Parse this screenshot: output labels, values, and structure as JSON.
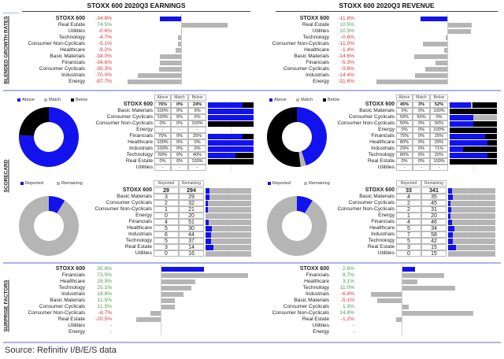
{
  "colors": {
    "blue": "#1212ee",
    "gray": "#b5b5b5",
    "black": "#000000",
    "green": "#4c9a4c",
    "red": "#d43535"
  },
  "section_labels": {
    "growth": "BLENDED GROWTH RATES",
    "scorecard": "SCORECARD",
    "surprise": "SURPRISE FACTORS"
  },
  "source": "Source: Refinitiv I/B/E/S data",
  "chart_data": [
    {
      "type": "bar",
      "title": "STOXX 600 2020Q3 EARNINGS",
      "panel": "Blended Growth Rates (%)",
      "categories": [
        "STOXX 600",
        "Real Estate",
        "Utilities",
        "Technology",
        "Consumer Non-Cyclicals",
        "Healthcare",
        "Basic Materials",
        "Financials",
        "Consumer Cyclicals",
        "Industrials",
        "Energy"
      ],
      "values": [
        -34.8,
        74.5,
        -0.6,
        -4.7,
        -5.1,
        -9.2,
        -34.0,
        -34.6,
        -35.3,
        -70.0,
        -87.7
      ],
      "labels": [
        "-34.8%",
        "74.5%",
        "-0.6%",
        "-4.7%",
        "-5.1%",
        "-9.2%",
        "-34.0%",
        "-34.6%",
        "-35.3%",
        "-70.0%",
        "-87.7%"
      ]
    },
    {
      "type": "bar",
      "title": "STOXX 600 2020Q3 REVENUE",
      "panel": "Blended Growth Rates (%)",
      "categories": [
        "STOXX 600",
        "Real Estate",
        "Utilities",
        "Technology",
        "Consumer Non-Cyclicals",
        "Healthcare",
        "Basic Materials",
        "Financials",
        "Consumer Cyclicals",
        "Industrials",
        "Energy"
      ],
      "values": [
        -11.8,
        10.5,
        10.3,
        -0.6,
        -11.0,
        -1.4,
        -14.6,
        -5.3,
        -9.8,
        -14.4,
        -31.6
      ],
      "labels": [
        "-11.8%",
        "10.5%",
        "10.3%",
        "-0.6%",
        "-11.0%",
        "-1.4%",
        "-14.6%",
        "-5.3%",
        "-9.8%",
        "-14.4%",
        "-31.6%"
      ]
    },
    {
      "type": "table",
      "panel": "Earnings Scorecard",
      "legend": [
        "Above",
        "Match",
        "Below"
      ],
      "headers": [
        "Above",
        "Match",
        "Below"
      ],
      "rows": [
        {
          "label": "STOXX 600",
          "cells": [
            "76%",
            "0%",
            "24%"
          ],
          "values": [
            76,
            0,
            24
          ]
        },
        {
          "label": "Basic Materials",
          "cells": [
            "100%",
            "0%",
            "0%"
          ],
          "values": [
            100,
            0,
            0
          ]
        },
        {
          "label": "Consumer Cyclicals",
          "cells": [
            "100%",
            "0%",
            "0%"
          ],
          "values": [
            100,
            0,
            0
          ]
        },
        {
          "label": "Consumer Non-Cyclicals",
          "cells": [
            "0%",
            "0%",
            "100%"
          ],
          "values": [
            0,
            0,
            100
          ]
        },
        {
          "label": "Energy",
          "cells": [
            "-",
            "-",
            "-"
          ],
          "values": null
        },
        {
          "label": "Financials",
          "cells": [
            "75%",
            "0%",
            "25%"
          ],
          "values": [
            75,
            0,
            25
          ]
        },
        {
          "label": "Healthcare",
          "cells": [
            "100%",
            "0%",
            "0%"
          ],
          "values": [
            100,
            0,
            0
          ]
        },
        {
          "label": "Industrials",
          "cells": [
            "100%",
            "0%",
            "0%"
          ],
          "values": [
            100,
            0,
            0
          ]
        },
        {
          "label": "Technology",
          "cells": [
            "60%",
            "0%",
            "40%"
          ],
          "values": [
            60,
            0,
            40
          ]
        },
        {
          "label": "Real Estate",
          "cells": [
            "0%",
            "0%",
            "100%"
          ],
          "values": [
            0,
            0,
            100
          ]
        },
        {
          "label": "Utilities",
          "cells": [
            "-",
            "-",
            "-"
          ],
          "values": null
        }
      ]
    },
    {
      "type": "table",
      "panel": "Revenue Scorecard",
      "legend": [
        "Above",
        "Match",
        "Below"
      ],
      "headers": [
        "Above",
        "Match",
        "Below"
      ],
      "rows": [
        {
          "label": "STOXX 600",
          "cells": [
            "45%",
            "3%",
            "52%"
          ],
          "values": [
            45,
            3,
            52
          ]
        },
        {
          "label": "Basic Materials",
          "cells": [
            "0%",
            "0%",
            "100%"
          ],
          "values": [
            0,
            0,
            100
          ]
        },
        {
          "label": "Consumer Cyclicals",
          "cells": [
            "50%",
            "50%",
            "0%"
          ],
          "values": [
            50,
            50,
            0
          ]
        },
        {
          "label": "Consumer Non-Cyclicals",
          "cells": [
            "50%",
            "0%",
            "50%"
          ],
          "values": [
            50,
            0,
            50
          ]
        },
        {
          "label": "Energy",
          "cells": [
            "0%",
            "0%",
            "100%"
          ],
          "values": [
            0,
            0,
            100
          ]
        },
        {
          "label": "Financials",
          "cells": [
            "75%",
            "0%",
            "25%"
          ],
          "values": [
            75,
            0,
            25
          ]
        },
        {
          "label": "Healthcare",
          "cells": [
            "80%",
            "0%",
            "20%"
          ],
          "values": [
            80,
            0,
            20
          ]
        },
        {
          "label": "Industrials",
          "cells": [
            "29%",
            "0%",
            "71%"
          ],
          "values": [
            29,
            0,
            71
          ]
        },
        {
          "label": "Technology",
          "cells": [
            "80%",
            "0%",
            "20%"
          ],
          "values": [
            80,
            0,
            20
          ]
        },
        {
          "label": "Real Estate",
          "cells": [
            "0%",
            "0%",
            "100%"
          ],
          "values": [
            0,
            0,
            100
          ]
        },
        {
          "label": "Utilities",
          "cells": [
            "-",
            "-",
            "-"
          ],
          "values": null
        }
      ]
    },
    {
      "type": "table",
      "panel": "Earnings Reported",
      "legend": [
        "Reported",
        "Remaining"
      ],
      "headers": [
        "Reported",
        "Remaining"
      ],
      "rows": [
        {
          "label": "STOXX 600",
          "cells": [
            "29",
            "294"
          ]
        },
        {
          "label": "Basic Materials",
          "cells": [
            "3",
            "29"
          ]
        },
        {
          "label": "Consumer Cyclicals",
          "cells": [
            "2",
            "32"
          ]
        },
        {
          "label": "Consumer Non-Cyclicals",
          "cells": [
            "1",
            "21"
          ]
        },
        {
          "label": "Energy",
          "cells": [
            "0",
            "20"
          ]
        },
        {
          "label": "Financials",
          "cells": [
            "4",
            "51"
          ]
        },
        {
          "label": "Healthcare",
          "cells": [
            "5",
            "30"
          ]
        },
        {
          "label": "Industrials",
          "cells": [
            "6",
            "44"
          ]
        },
        {
          "label": "Technology",
          "cells": [
            "5",
            "37"
          ]
        },
        {
          "label": "Real Estate",
          "cells": [
            "3",
            "14"
          ]
        },
        {
          "label": "Utilities",
          "cells": [
            "0",
            "16"
          ]
        }
      ]
    },
    {
      "type": "table",
      "panel": "Revenue Reported",
      "legend": [
        "Reported",
        "Remaining"
      ],
      "headers": [
        "Reported",
        "Remaining"
      ],
      "rows": [
        {
          "label": "STOXX 600",
          "cells": [
            "33",
            "341"
          ]
        },
        {
          "label": "Basic Materials",
          "cells": [
            "4",
            "35"
          ]
        },
        {
          "label": "Consumer Cyclicals",
          "cells": [
            "2",
            "45"
          ]
        },
        {
          "label": "Consumer Non-Cyclicals",
          "cells": [
            "2",
            "31"
          ]
        },
        {
          "label": "Energy",
          "cells": [
            "1",
            "20"
          ]
        },
        {
          "label": "Financials",
          "cells": [
            "4",
            "46"
          ]
        },
        {
          "label": "Healthcare",
          "cells": [
            "5",
            "34"
          ]
        },
        {
          "label": "Industrials",
          "cells": [
            "7",
            "58"
          ]
        },
        {
          "label": "Technology",
          "cells": [
            "5",
            "42"
          ]
        },
        {
          "label": "Real Estate",
          "cells": [
            "3",
            "15"
          ]
        },
        {
          "label": "Utilities",
          "cells": [
            "0",
            "15"
          ]
        }
      ]
    },
    {
      "type": "bar",
      "panel": "Earnings Surprise Factors (%)",
      "categories": [
        "STOXX 600",
        "Financials",
        "Healthcare",
        "Technology",
        "Industrials",
        "Basic Materials",
        "Consumer Cyclicals",
        "Consumer Non-Cyclicals",
        "Real Estate",
        "Utilities",
        "Energy"
      ],
      "values": [
        35.9,
        73.5,
        28.9,
        25.1,
        18.8,
        11.5,
        11.5,
        -8.7,
        -20.5,
        null,
        null
      ],
      "labels": [
        "35.9%",
        "73.5%",
        "28.9%",
        "25.1%",
        "18.8%",
        "11.5%",
        "11.5%",
        "-8.7%",
        "-20.5%",
        "-",
        "-"
      ]
    },
    {
      "type": "bar",
      "panel": "Revenue Surprise Factors (%)",
      "categories": [
        "STOXX 600",
        "Financials",
        "Healthcare",
        "Technology",
        "Industrials",
        "Basic Materials",
        "Consumer Cyclicals",
        "Consumer Non-Cyclicals",
        "Real Estate",
        "Utilities",
        "Energy"
      ],
      "values": [
        2.6,
        8.7,
        3.1,
        11.0,
        -6.4,
        -5.1,
        1.3,
        14.8,
        -1.2,
        null,
        null
      ],
      "labels": [
        "2.6%",
        "8.7%",
        "3.1%",
        "11.0%",
        "-6.4%",
        "-5.1%",
        "1.3%",
        "14.8%",
        "-1.2%",
        "-",
        "-"
      ]
    }
  ]
}
